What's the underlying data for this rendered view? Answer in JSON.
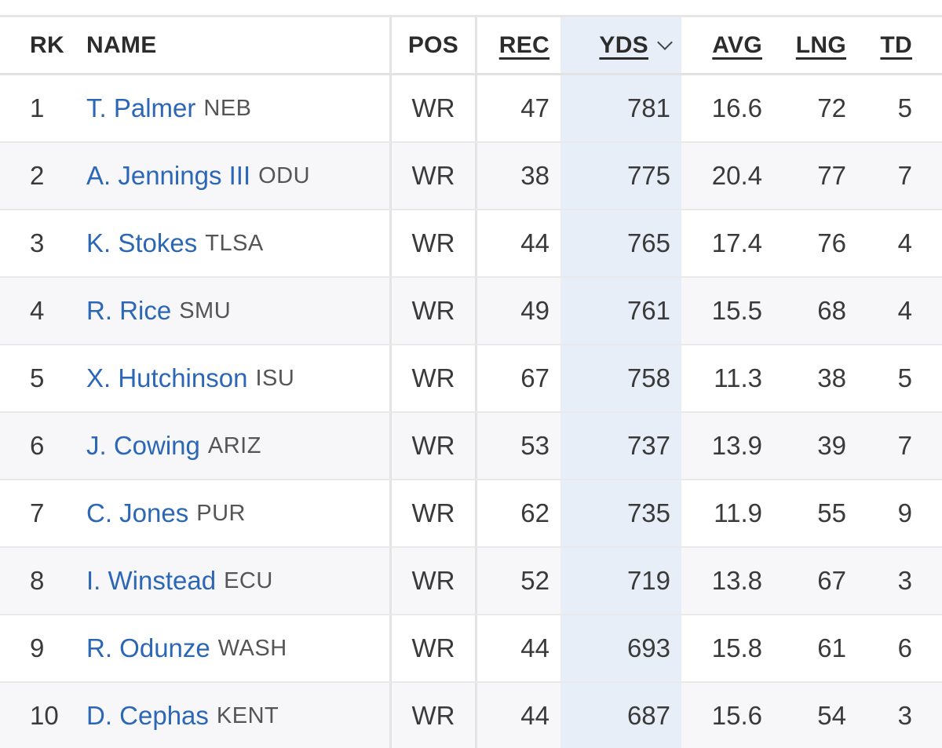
{
  "table": {
    "headers": {
      "rk": "RK",
      "name": "NAME",
      "pos": "POS",
      "rec": "REC",
      "yds": "YDS",
      "avg": "AVG",
      "lng": "LNG",
      "td": "TD"
    },
    "sort": {
      "column": "YDS",
      "direction": "descending",
      "icon": "chevron-down-icon"
    },
    "rows": [
      {
        "rk": "1",
        "name": "T. Palmer",
        "team": "NEB",
        "pos": "WR",
        "rec": "47",
        "yds": "781",
        "avg": "16.6",
        "lng": "72",
        "td": "5"
      },
      {
        "rk": "2",
        "name": "A. Jennings III",
        "team": "ODU",
        "pos": "WR",
        "rec": "38",
        "yds": "775",
        "avg": "20.4",
        "lng": "77",
        "td": "7"
      },
      {
        "rk": "3",
        "name": "K. Stokes",
        "team": "TLSA",
        "pos": "WR",
        "rec": "44",
        "yds": "765",
        "avg": "17.4",
        "lng": "76",
        "td": "4"
      },
      {
        "rk": "4",
        "name": "R. Rice",
        "team": "SMU",
        "pos": "WR",
        "rec": "49",
        "yds": "761",
        "avg": "15.5",
        "lng": "68",
        "td": "4"
      },
      {
        "rk": "5",
        "name": "X. Hutchinson",
        "team": "ISU",
        "pos": "WR",
        "rec": "67",
        "yds": "758",
        "avg": "11.3",
        "lng": "38",
        "td": "5"
      },
      {
        "rk": "6",
        "name": "J. Cowing",
        "team": "ARIZ",
        "pos": "WR",
        "rec": "53",
        "yds": "737",
        "avg": "13.9",
        "lng": "39",
        "td": "7"
      },
      {
        "rk": "7",
        "name": "C. Jones",
        "team": "PUR",
        "pos": "WR",
        "rec": "62",
        "yds": "735",
        "avg": "11.9",
        "lng": "55",
        "td": "9"
      },
      {
        "rk": "8",
        "name": "I. Winstead",
        "team": "ECU",
        "pos": "WR",
        "rec": "52",
        "yds": "719",
        "avg": "13.8",
        "lng": "67",
        "td": "3"
      },
      {
        "rk": "9",
        "name": "R. Odunze",
        "team": "WASH",
        "pos": "WR",
        "rec": "44",
        "yds": "693",
        "avg": "15.8",
        "lng": "61",
        "td": "6"
      },
      {
        "rk": "10",
        "name": "D. Cephas",
        "team": "KENT",
        "pos": "WR",
        "rec": "44",
        "yds": "687",
        "avg": "15.6",
        "lng": "54",
        "td": "3"
      }
    ]
  },
  "colors": {
    "link": "#2b67b6",
    "sorted_column_bg": "#e8eef7",
    "stripe_bg": "#f7f7f9"
  }
}
